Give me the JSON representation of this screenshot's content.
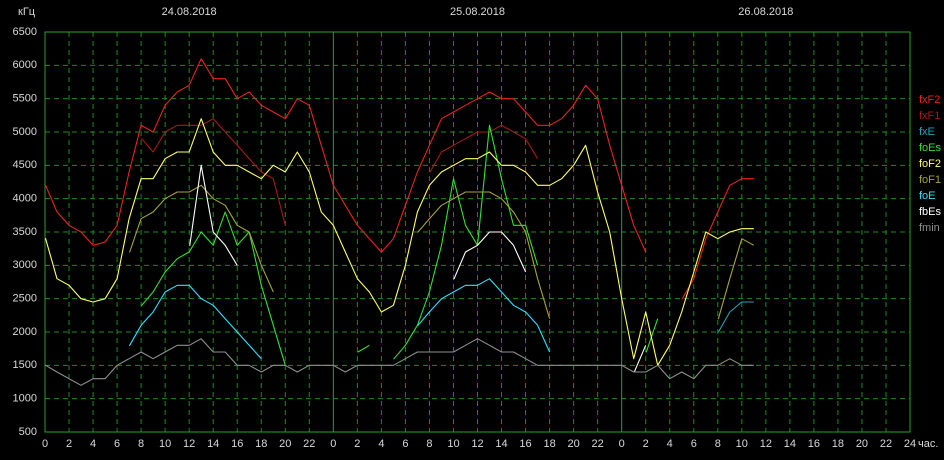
{
  "chart_data": {
    "type": "line",
    "unit_label": "кГц",
    "x_unit": "час.",
    "dates": [
      "24.08.2018",
      "25.08.2018",
      "26.08.2018"
    ],
    "x": [
      0,
      1,
      2,
      3,
      4,
      5,
      6,
      7,
      8,
      9,
      10,
      11,
      12,
      13,
      14,
      15,
      16,
      17,
      18,
      19,
      20,
      21,
      22,
      23,
      24,
      25,
      26,
      27,
      28,
      29,
      30,
      31,
      32,
      33,
      34,
      35,
      36,
      37,
      38,
      39,
      40,
      41,
      42,
      43,
      44,
      45,
      46,
      47,
      48,
      49,
      50,
      51,
      52,
      53,
      54,
      55,
      56,
      57,
      58,
      59
    ],
    "xlim": [
      0,
      72
    ],
    "xticks": [
      0,
      2,
      4,
      6,
      8,
      10,
      12,
      14,
      16,
      18,
      20,
      22,
      {
        "value": 24,
        "label": "0"
      },
      {
        "value": 26,
        "label": "2"
      },
      {
        "value": 28,
        "label": "4"
      },
      {
        "value": 30,
        "label": "6"
      },
      {
        "value": 32,
        "label": "8"
      },
      {
        "value": 34,
        "label": "10"
      },
      {
        "value": 36,
        "label": "12"
      },
      {
        "value": 38,
        "label": "14"
      },
      {
        "value": 40,
        "label": "16"
      },
      {
        "value": 42,
        "label": "18"
      },
      {
        "value": 44,
        "label": "20"
      },
      {
        "value": 46,
        "label": "22"
      },
      {
        "value": 48,
        "label": "0"
      },
      {
        "value": 50,
        "label": "2"
      },
      {
        "value": 52,
        "label": "4"
      },
      {
        "value": 54,
        "label": "6"
      },
      {
        "value": 56,
        "label": "8"
      },
      {
        "value": 58,
        "label": "10"
      },
      {
        "value": 60,
        "label": "12"
      },
      {
        "value": 62,
        "label": "14"
      },
      {
        "value": 64,
        "label": "16"
      },
      {
        "value": 66,
        "label": "18"
      },
      {
        "value": 68,
        "label": "20"
      },
      {
        "value": 70,
        "label": "22"
      },
      {
        "value": 72,
        "label": "24"
      }
    ],
    "ylim": [
      500,
      6500
    ],
    "yticks": [
      500,
      1000,
      1500,
      2000,
      2500,
      3000,
      3500,
      4000,
      4500,
      5000,
      5500,
      6000,
      6500
    ],
    "grid": true,
    "series": [
      {
        "name": "fxF2",
        "color": "#e8231f",
        "values": [
          4200,
          3800,
          3600,
          3500,
          3300,
          3350,
          3600,
          4400,
          5100,
          5000,
          5400,
          5600,
          5700,
          6100,
          5800,
          5800,
          5500,
          5600,
          5400,
          5300,
          5200,
          5500,
          5400,
          4800,
          4200,
          3900,
          3600,
          3400,
          3200,
          3400,
          3900,
          4400,
          4800,
          5200,
          5300,
          5400,
          5500,
          5600,
          5500,
          5500,
          5300,
          5100,
          5100,
          5200,
          5400,
          5700,
          5500,
          4800,
          4200,
          3600,
          3200,
          null,
          null,
          2500,
          2800,
          3400,
          3800,
          4200,
          4300,
          4300
        ]
      },
      {
        "name": "fxF1",
        "color": "#a51a1a",
        "values": [
          null,
          null,
          null,
          null,
          null,
          null,
          null,
          null,
          4900,
          4700,
          5000,
          5100,
          5100,
          5100,
          5200,
          5000,
          4800,
          4600,
          4400,
          4300,
          3600,
          null,
          null,
          null,
          null,
          null,
          null,
          null,
          null,
          null,
          null,
          null,
          4400,
          4700,
          4800,
          4900,
          5000,
          5000,
          5100,
          5000,
          4900,
          4600,
          null,
          null,
          null,
          null,
          null,
          null,
          null,
          null,
          null,
          null,
          null,
          null,
          null,
          null,
          null,
          null,
          null,
          null
        ]
      },
      {
        "name": "fxE",
        "color": "#2aa0b8",
        "values": [
          null,
          null,
          null,
          null,
          null,
          null,
          null,
          null,
          null,
          null,
          null,
          null,
          null,
          null,
          null,
          null,
          null,
          null,
          null,
          null,
          null,
          null,
          null,
          null,
          null,
          null,
          null,
          null,
          null,
          null,
          null,
          null,
          null,
          null,
          null,
          null,
          null,
          null,
          null,
          null,
          null,
          null,
          null,
          null,
          null,
          null,
          null,
          null,
          null,
          null,
          null,
          null,
          null,
          null,
          null,
          null,
          2000,
          2300,
          2450,
          2450
        ]
      },
      {
        "name": "foEs",
        "color": "#34e034",
        "values": [
          null,
          null,
          null,
          null,
          null,
          null,
          null,
          null,
          2400,
          2600,
          2900,
          3100,
          3200,
          3500,
          3300,
          3800,
          3300,
          3500,
          2700,
          2100,
          1500,
          null,
          null,
          null,
          null,
          null,
          1700,
          1800,
          null,
          1600,
          1800,
          2100,
          2600,
          3300,
          4300,
          3600,
          3300,
          5100,
          4300,
          3600,
          3600,
          3000,
          null,
          null,
          null,
          null,
          null,
          null,
          null,
          null,
          1700,
          2200,
          null,
          null,
          null,
          null,
          null,
          null,
          null,
          null
        ]
      },
      {
        "name": "foF2",
        "color": "#ffff66",
        "values": [
          3400,
          2800,
          2700,
          2500,
          2450,
          2500,
          2800,
          3700,
          4300,
          4300,
          4600,
          4700,
          4700,
          5200,
          4700,
          4500,
          4500,
          4400,
          4300,
          4500,
          4400,
          4700,
          4400,
          3800,
          3600,
          3200,
          2800,
          2600,
          2300,
          2400,
          3000,
          3800,
          4200,
          4400,
          4500,
          4600,
          4600,
          4700,
          4500,
          4500,
          4400,
          4200,
          4200,
          4300,
          4500,
          4800,
          4100,
          3500,
          2500,
          1600,
          2300,
          1500,
          1800,
          2300,
          2900,
          3500,
          3400,
          3500,
          3550,
          3550
        ]
      },
      {
        "name": "foF1",
        "color": "#a5a535",
        "values": [
          null,
          null,
          null,
          null,
          null,
          null,
          null,
          3200,
          3700,
          3800,
          4000,
          4100,
          4100,
          4200,
          4000,
          3900,
          3600,
          3500,
          3000,
          2600,
          null,
          null,
          null,
          null,
          null,
          null,
          null,
          null,
          null,
          null,
          null,
          3500,
          3700,
          3900,
          4000,
          4100,
          4100,
          4100,
          4000,
          3800,
          3500,
          2800,
          2200,
          null,
          null,
          null,
          null,
          null,
          null,
          null,
          null,
          null,
          null,
          null,
          null,
          null,
          2200,
          2800,
          3400,
          3300
        ]
      },
      {
        "name": "foE",
        "color": "#30e0ff",
        "values": [
          null,
          null,
          null,
          null,
          null,
          null,
          null,
          1800,
          2100,
          2300,
          2600,
          2700,
          2700,
          2500,
          2400,
          2200,
          2000,
          1800,
          1600,
          null,
          null,
          null,
          null,
          null,
          null,
          null,
          null,
          null,
          null,
          null,
          null,
          2100,
          2300,
          2500,
          2600,
          2700,
          2700,
          2800,
          2600,
          2400,
          2300,
          2100,
          1700,
          null,
          null,
          null,
          null,
          null,
          null,
          null,
          null,
          null,
          null,
          null,
          1700,
          null,
          null,
          null,
          null,
          null
        ]
      },
      {
        "name": "fbEs",
        "color": "#ffffff",
        "values": [
          null,
          null,
          null,
          null,
          null,
          null,
          null,
          null,
          null,
          null,
          null,
          null,
          3300,
          4500,
          3500,
          3300,
          3000,
          null,
          null,
          null,
          null,
          null,
          null,
          null,
          null,
          null,
          null,
          null,
          null,
          null,
          null,
          null,
          null,
          null,
          2800,
          3200,
          3300,
          3500,
          3500,
          3300,
          2900,
          null,
          null,
          null,
          null,
          null,
          null,
          null,
          null,
          1400,
          1800,
          null,
          1900,
          null,
          null,
          null,
          null,
          null,
          null,
          null
        ]
      },
      {
        "name": "fmin",
        "color": "#909090",
        "values": [
          1500,
          1400,
          1300,
          1200,
          1300,
          1300,
          1500,
          1600,
          1700,
          1600,
          1700,
          1800,
          1800,
          1900,
          1700,
          1700,
          1500,
          1500,
          1400,
          1500,
          1500,
          1400,
          1500,
          1500,
          1500,
          1400,
          1500,
          1500,
          1500,
          1500,
          1600,
          1700,
          1700,
          1700,
          1700,
          1800,
          1900,
          1800,
          1700,
          1700,
          1600,
          1500,
          1500,
          1500,
          1500,
          1500,
          1500,
          1500,
          1500,
          1400,
          1400,
          1500,
          1300,
          1400,
          1300,
          1500,
          1500,
          1600,
          1500,
          1500
        ]
      }
    ]
  }
}
